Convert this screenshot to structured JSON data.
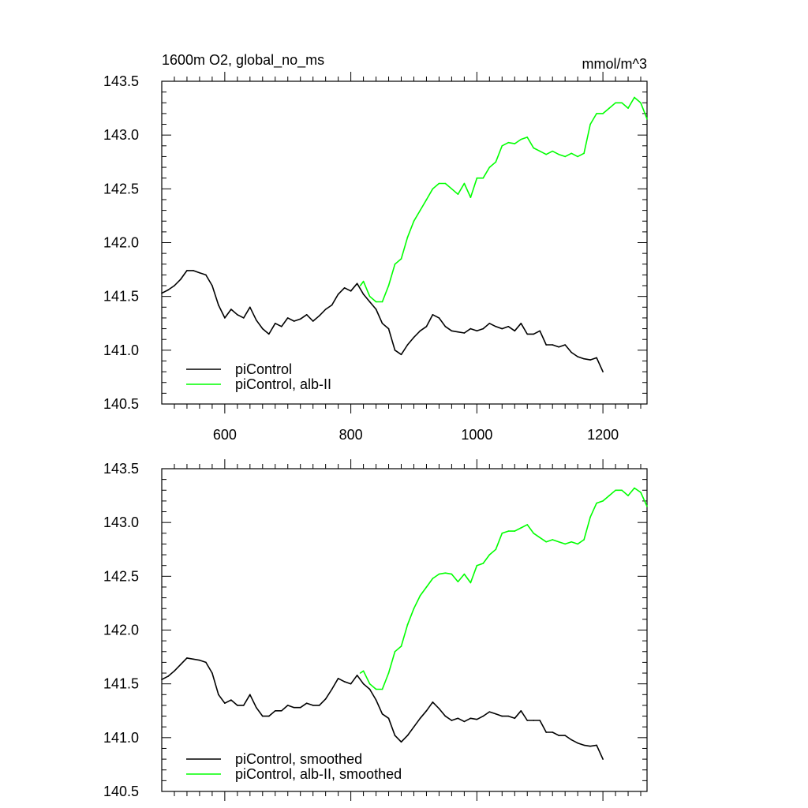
{
  "chart_data": [
    {
      "type": "line",
      "title": "1600m O2, global_no_ms",
      "units": "mmol/m^3",
      "xlabel": "",
      "ylabel": "",
      "xlim": [
        500,
        1270
      ],
      "ylim": [
        140.5,
        143.5
      ],
      "x_ticks": [
        600,
        800,
        1000,
        1200
      ],
      "x_tick_labels": [
        "600",
        "800",
        "1000",
        "1200"
      ],
      "y_ticks": [
        140.5,
        141.0,
        141.5,
        142.0,
        142.5,
        143.0,
        143.5
      ],
      "y_tick_labels": [
        "140.5",
        "141.0",
        "141.5",
        "142.0",
        "142.5",
        "143.0",
        "143.5"
      ],
      "grid": false,
      "legend_position": "bottom-left",
      "series": [
        {
          "name": "piControl",
          "color": "#000000",
          "x": [
            500,
            510,
            520,
            530,
            540,
            550,
            560,
            570,
            580,
            590,
            600,
            610,
            620,
            630,
            640,
            650,
            660,
            670,
            680,
            690,
            700,
            710,
            720,
            730,
            740,
            750,
            760,
            770,
            780,
            790,
            800,
            810,
            820,
            830,
            840,
            850,
            860,
            870,
            880,
            890,
            900,
            910,
            920,
            930,
            940,
            950,
            960,
            970,
            980,
            990,
            1000,
            1010,
            1020,
            1030,
            1040,
            1050,
            1060,
            1070,
            1080,
            1090,
            1100,
            1110,
            1120,
            1130,
            1140,
            1150,
            1160,
            1170,
            1180,
            1190,
            1200
          ],
          "values": [
            141.53,
            141.56,
            141.6,
            141.66,
            141.74,
            141.74,
            141.72,
            141.7,
            141.6,
            141.42,
            141.3,
            141.38,
            141.33,
            141.3,
            141.4,
            141.28,
            141.2,
            141.15,
            141.25,
            141.22,
            141.3,
            141.27,
            141.29,
            141.33,
            141.27,
            141.32,
            141.38,
            141.42,
            141.52,
            141.58,
            141.55,
            141.62,
            141.52,
            141.45,
            141.38,
            141.25,
            141.2,
            141.0,
            140.96,
            141.05,
            141.12,
            141.18,
            141.22,
            141.33,
            141.3,
            141.22,
            141.18,
            141.17,
            141.16,
            141.2,
            141.18,
            141.2,
            141.25,
            141.22,
            141.2,
            141.22,
            141.18,
            141.25,
            141.15,
            141.15,
            141.18,
            141.05,
            141.05,
            141.03,
            141.05,
            140.98,
            140.94,
            140.92,
            140.91,
            140.93,
            140.8
          ]
        },
        {
          "name": "piControl, alb-II",
          "color": "#00ff00",
          "x": [
            815,
            820,
            830,
            840,
            850,
            860,
            870,
            880,
            890,
            900,
            910,
            920,
            930,
            940,
            950,
            960,
            970,
            980,
            990,
            1000,
            1010,
            1020,
            1030,
            1040,
            1050,
            1060,
            1070,
            1080,
            1090,
            1100,
            1110,
            1120,
            1130,
            1140,
            1150,
            1160,
            1170,
            1180,
            1190,
            1200,
            1210,
            1220,
            1230,
            1240,
            1250,
            1260,
            1270
          ],
          "values": [
            141.6,
            141.64,
            141.5,
            141.45,
            141.45,
            141.6,
            141.8,
            141.85,
            142.05,
            142.2,
            142.3,
            142.4,
            142.5,
            142.55,
            142.55,
            142.5,
            142.45,
            142.55,
            142.42,
            142.6,
            142.6,
            142.7,
            142.75,
            142.9,
            142.93,
            142.92,
            142.96,
            142.98,
            142.88,
            142.85,
            142.82,
            142.85,
            142.82,
            142.8,
            142.83,
            142.8,
            142.83,
            143.1,
            143.2,
            143.2,
            143.25,
            143.3,
            143.3,
            143.25,
            143.35,
            143.3,
            143.15
          ]
        }
      ]
    },
    {
      "type": "line",
      "title": "",
      "xlabel": "",
      "ylabel": "",
      "xlim": [
        500,
        1270
      ],
      "ylim": [
        140.5,
        143.5
      ],
      "x_ticks": [
        600,
        800,
        1000,
        1200
      ],
      "x_tick_labels": [],
      "y_ticks": [
        140.5,
        141.0,
        141.5,
        142.0,
        142.5,
        143.0,
        143.5
      ],
      "y_tick_labels": [
        "140.5",
        "141.0",
        "141.5",
        "142.0",
        "142.5",
        "143.0",
        "143.5"
      ],
      "grid": false,
      "legend_position": "bottom-left",
      "series": [
        {
          "name": "piControl, smoothed",
          "color": "#000000",
          "x": [
            500,
            510,
            520,
            530,
            540,
            550,
            560,
            570,
            580,
            590,
            600,
            610,
            620,
            630,
            640,
            650,
            660,
            670,
            680,
            690,
            700,
            710,
            720,
            730,
            740,
            750,
            760,
            770,
            780,
            790,
            800,
            810,
            820,
            830,
            840,
            850,
            860,
            870,
            880,
            890,
            900,
            910,
            920,
            930,
            940,
            950,
            960,
            970,
            980,
            990,
            1000,
            1010,
            1020,
            1030,
            1040,
            1050,
            1060,
            1070,
            1080,
            1090,
            1100,
            1110,
            1120,
            1130,
            1140,
            1150,
            1160,
            1170,
            1180,
            1190,
            1200
          ],
          "values": [
            141.54,
            141.57,
            141.62,
            141.68,
            141.74,
            141.73,
            141.72,
            141.7,
            141.6,
            141.4,
            141.32,
            141.35,
            141.3,
            141.3,
            141.4,
            141.28,
            141.2,
            141.2,
            141.25,
            141.25,
            141.3,
            141.28,
            141.28,
            141.32,
            141.3,
            141.3,
            141.36,
            141.45,
            141.55,
            141.52,
            141.5,
            141.58,
            141.5,
            141.45,
            141.35,
            141.22,
            141.18,
            141.02,
            140.96,
            141.02,
            141.1,
            141.18,
            141.25,
            141.33,
            141.27,
            141.2,
            141.16,
            141.18,
            141.15,
            141.18,
            141.17,
            141.2,
            141.24,
            141.22,
            141.2,
            141.2,
            141.18,
            141.25,
            141.16,
            141.16,
            141.16,
            141.05,
            141.05,
            141.02,
            141.02,
            140.98,
            140.95,
            140.93,
            140.92,
            140.93,
            140.8
          ]
        },
        {
          "name": "piControl, alb-II, smoothed",
          "color": "#00ff00",
          "x": [
            815,
            820,
            830,
            840,
            850,
            860,
            870,
            880,
            890,
            900,
            910,
            920,
            930,
            940,
            950,
            960,
            970,
            980,
            990,
            1000,
            1010,
            1020,
            1030,
            1040,
            1050,
            1060,
            1070,
            1080,
            1090,
            1100,
            1110,
            1120,
            1130,
            1140,
            1150,
            1160,
            1170,
            1180,
            1190,
            1200,
            1210,
            1220,
            1230,
            1240,
            1250,
            1260,
            1270
          ],
          "values": [
            141.6,
            141.62,
            141.5,
            141.45,
            141.45,
            141.6,
            141.8,
            141.85,
            142.05,
            142.2,
            142.32,
            142.4,
            142.48,
            142.52,
            142.53,
            142.52,
            142.45,
            142.52,
            142.44,
            142.6,
            142.62,
            142.7,
            142.75,
            142.9,
            142.92,
            142.92,
            142.95,
            142.98,
            142.9,
            142.86,
            142.82,
            142.84,
            142.82,
            142.8,
            142.82,
            142.8,
            142.84,
            143.05,
            143.18,
            143.2,
            143.25,
            143.3,
            143.3,
            143.25,
            143.32,
            143.28,
            143.15
          ]
        }
      ]
    }
  ]
}
